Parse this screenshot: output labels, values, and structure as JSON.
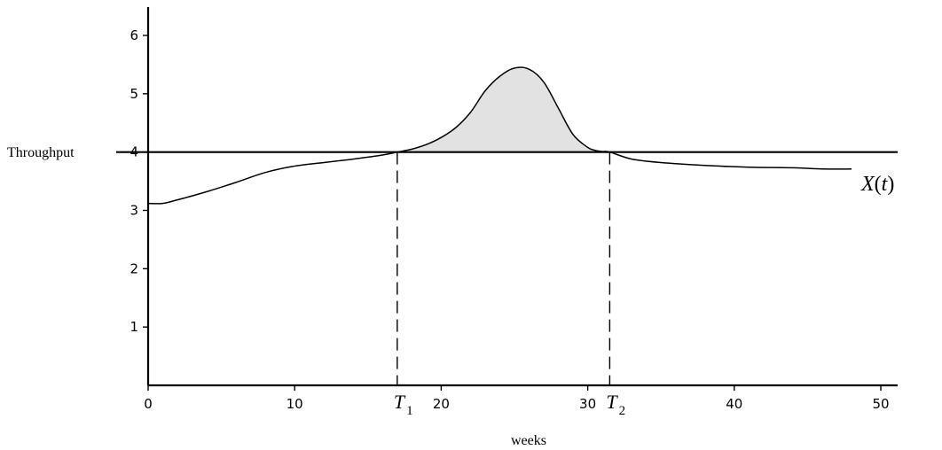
{
  "chart_data": {
    "type": "line",
    "title": "",
    "xlabel": "weeks",
    "ylabel": "Throughput",
    "xlim": [
      0,
      50
    ],
    "ylim": [
      0,
      6.5
    ],
    "x_ticks": [
      0,
      10,
      20,
      30,
      40,
      50
    ],
    "y_ticks": [
      1,
      2,
      3,
      4,
      5,
      6
    ],
    "grid": false,
    "threshold": 4,
    "curve_label": {
      "name": "X",
      "open": "(",
      "var": "t",
      "close": ")"
    },
    "markers": [
      {
        "name": "T",
        "sub": "1",
        "x": 17
      },
      {
        "name": "T",
        "sub": "2",
        "x": 31.5
      }
    ],
    "series": [
      {
        "x": [
          0,
          1,
          2,
          4,
          6,
          8,
          10,
          12,
          14,
          16,
          17,
          18,
          19,
          20,
          21,
          22,
          23,
          24,
          25,
          26,
          27,
          28,
          29,
          30,
          30.5,
          31,
          31.5,
          33,
          35,
          38,
          41,
          44,
          46,
          48
        ],
        "values": [
          3.12,
          3.12,
          3.18,
          3.32,
          3.48,
          3.65,
          3.76,
          3.82,
          3.88,
          3.95,
          4.0,
          4.05,
          4.13,
          4.25,
          4.42,
          4.68,
          5.05,
          5.3,
          5.44,
          5.42,
          5.2,
          4.75,
          4.3,
          4.08,
          4.03,
          4.01,
          4.0,
          3.88,
          3.82,
          3.77,
          3.74,
          3.73,
          3.71,
          3.71
        ]
      }
    ],
    "shaded_region": {
      "from": 17,
      "to": 31.5,
      "fill": "#e2e2e2",
      "above": 4
    }
  }
}
